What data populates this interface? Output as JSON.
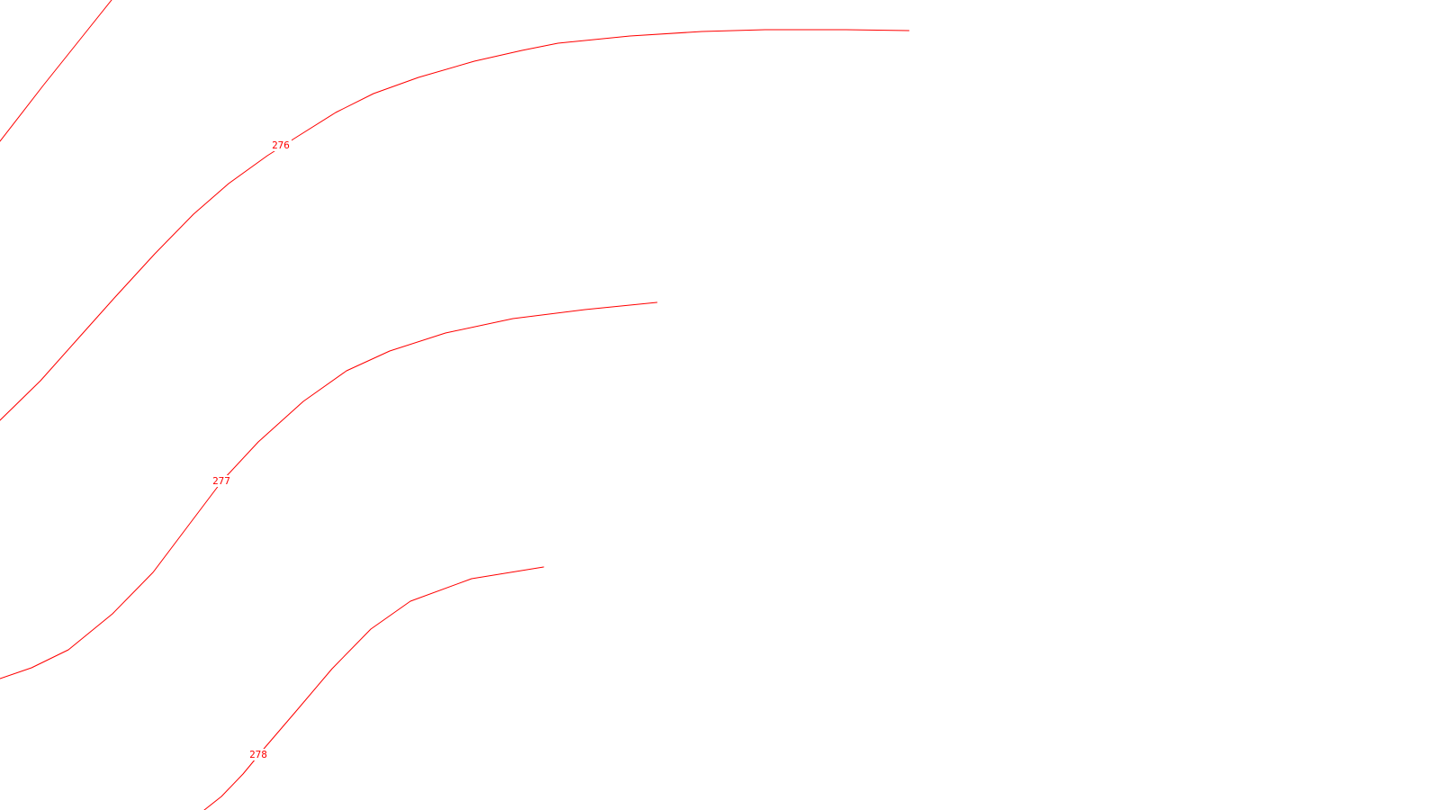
{
  "map": {
    "colors": {
      "background": "#ffffff",
      "contour": "#ff0000"
    },
    "contours": [
      {
        "id": "contour-275",
        "label": ""
      },
      {
        "id": "contour-276",
        "label": "276"
      },
      {
        "id": "contour-277",
        "label": "277"
      },
      {
        "id": "contour-278",
        "label": "278"
      }
    ]
  }
}
